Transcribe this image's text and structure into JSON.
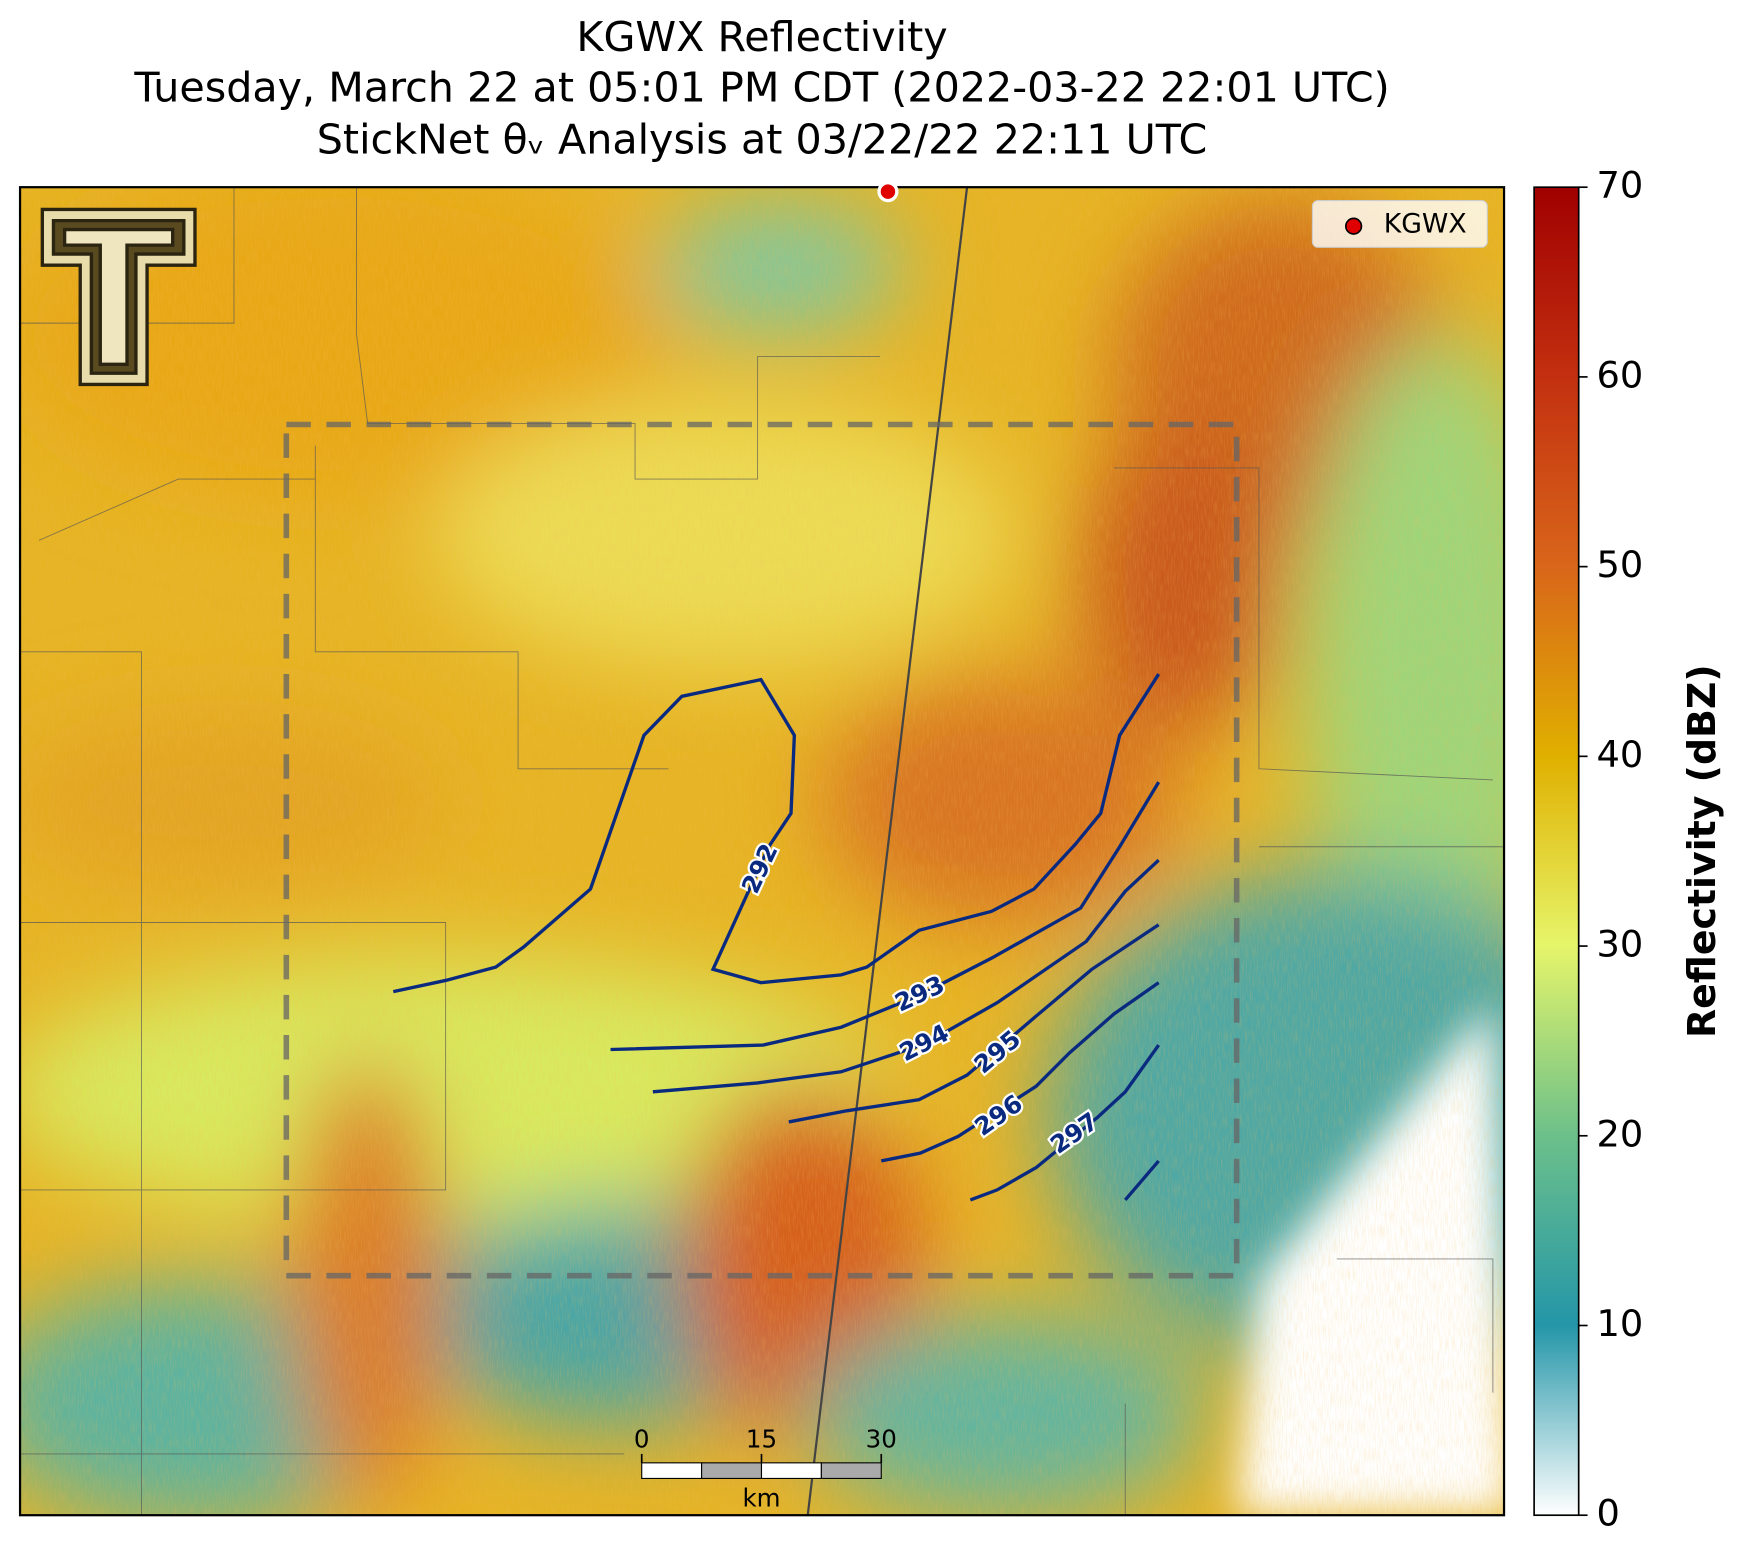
{
  "title": [
    "KGWX Reflectivity",
    "Tuesday, March 22 at 05:01 PM CDT (2022-03-22 22:01 UTC)",
    "StickNet θᵥ Analysis at 03/22/22 22:11 UTC"
  ],
  "legend": {
    "label": "KGWX"
  },
  "colorbar": {
    "label": "Reflectivity (dBZ)",
    "lim": [
      0,
      70
    ],
    "ticks": [
      0,
      10,
      20,
      30,
      40,
      50,
      60,
      70
    ]
  },
  "contours": [
    292,
    293,
    294,
    295,
    296,
    297
  ],
  "scale_bar": {
    "ticks": [
      0,
      15,
      30
    ],
    "unit": "km"
  }
}
